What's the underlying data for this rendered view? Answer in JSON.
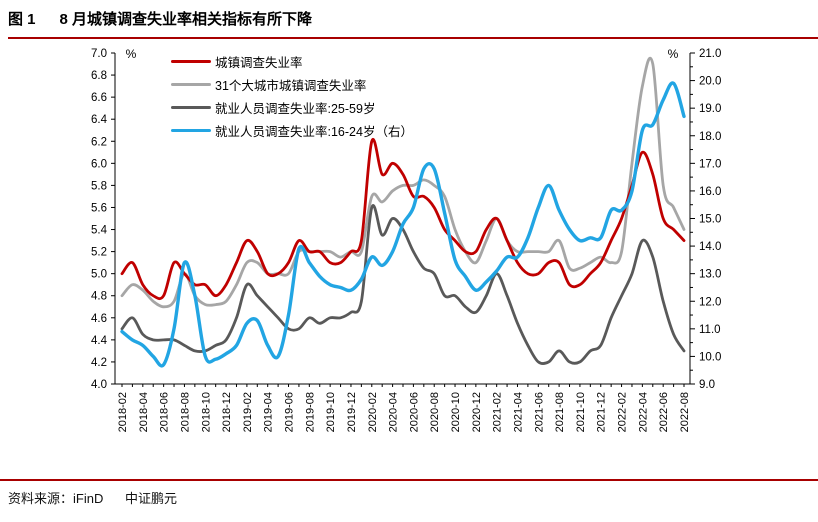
{
  "header": {
    "figure_label": "图 1",
    "title": "8 月城镇调查失业率相关指标有所下降"
  },
  "footer": {
    "source_label": "资料来源：",
    "source": "iFinD",
    "org": "中证鹏元"
  },
  "chart_data": {
    "type": "line",
    "title": "8 月城镇调查失业率相关指标有所下降",
    "grid": false,
    "legend_position": "top-left",
    "x_tick_label_every": 2,
    "x": [
      "2018-02",
      "2018-03",
      "2018-04",
      "2018-05",
      "2018-06",
      "2018-07",
      "2018-08",
      "2018-09",
      "2018-10",
      "2018-11",
      "2018-12",
      "2019-01",
      "2019-02",
      "2019-03",
      "2019-04",
      "2019-05",
      "2019-06",
      "2019-07",
      "2019-08",
      "2019-09",
      "2019-10",
      "2019-11",
      "2019-12",
      "2020-01",
      "2020-02",
      "2020-03",
      "2020-04",
      "2020-05",
      "2020-06",
      "2020-07",
      "2020-08",
      "2020-09",
      "2020-10",
      "2020-11",
      "2020-12",
      "2021-01",
      "2021-02",
      "2021-03",
      "2021-04",
      "2021-05",
      "2021-06",
      "2021-07",
      "2021-08",
      "2021-09",
      "2021-10",
      "2021-11",
      "2021-12",
      "2022-01",
      "2022-02",
      "2022-03",
      "2022-04",
      "2022-05",
      "2022-06",
      "2022-07",
      "2022-08"
    ],
    "left_axis": {
      "unit": "%",
      "min": 4.0,
      "max": 7.0,
      "step": 0.2,
      "ticks": [
        "7.0",
        "6.8",
        "6.6",
        "6.4",
        "6.2",
        "6.0",
        "5.8",
        "5.6",
        "5.4",
        "5.2",
        "5.0",
        "4.8",
        "4.6",
        "4.4",
        "4.2",
        "4.0"
      ]
    },
    "right_axis": {
      "unit": "%",
      "min": 9.0,
      "max": 21.0,
      "step": 1.0,
      "minor_step": 0.5,
      "ticks": [
        "21.0",
        "20.0",
        "19.0",
        "18.0",
        "17.0",
        "16.0",
        "15.0",
        "14.0",
        "13.0",
        "12.0",
        "11.0",
        "10.0",
        "9.0"
      ]
    },
    "series": [
      {
        "name": "城镇调查失业率",
        "color": "#c00000",
        "axis": "left",
        "values": [
          5.0,
          5.1,
          4.9,
          4.8,
          4.8,
          5.1,
          5.0,
          4.9,
          4.9,
          4.8,
          4.9,
          5.1,
          5.3,
          5.2,
          5.0,
          5.0,
          5.1,
          5.3,
          5.2,
          5.2,
          5.1,
          5.1,
          5.2,
          5.3,
          6.2,
          5.9,
          6.0,
          5.9,
          5.7,
          5.7,
          5.6,
          5.4,
          5.3,
          5.2,
          5.2,
          5.4,
          5.5,
          5.3,
          5.1,
          5.0,
          5.0,
          5.1,
          5.1,
          4.9,
          4.9,
          5.0,
          5.1,
          5.3,
          5.5,
          5.8,
          6.1,
          5.9,
          5.5,
          5.4,
          5.3
        ]
      },
      {
        "name": "31个大城市城镇调查失业率",
        "color": "#a6a6a6",
        "axis": "left",
        "values": [
          4.8,
          4.9,
          4.85,
          4.75,
          4.7,
          4.75,
          5.0,
          4.8,
          4.72,
          4.72,
          4.75,
          4.9,
          5.1,
          5.1,
          5.0,
          5.0,
          5.0,
          5.2,
          5.2,
          5.2,
          5.2,
          5.15,
          5.2,
          5.2,
          5.7,
          5.65,
          5.75,
          5.8,
          5.8,
          5.85,
          5.8,
          5.7,
          5.4,
          5.2,
          5.1,
          5.3,
          5.5,
          5.3,
          5.2,
          5.2,
          5.2,
          5.2,
          5.3,
          5.05,
          5.05,
          5.1,
          5.15,
          5.1,
          5.2,
          6.0,
          6.7,
          6.9,
          5.8,
          5.6,
          5.4
        ]
      },
      {
        "name": "就业人员调查失业率:25-59岁",
        "color": "#595959",
        "axis": "left",
        "values": [
          4.5,
          4.6,
          4.45,
          4.4,
          4.4,
          4.4,
          4.35,
          4.3,
          4.3,
          4.35,
          4.4,
          4.6,
          4.9,
          4.8,
          4.7,
          4.6,
          4.5,
          4.5,
          4.6,
          4.55,
          4.6,
          4.6,
          4.65,
          4.75,
          5.6,
          5.35,
          5.5,
          5.4,
          5.2,
          5.05,
          5.0,
          4.8,
          4.8,
          4.7,
          4.65,
          4.8,
          5.0,
          4.8,
          4.55,
          4.35,
          4.2,
          4.2,
          4.3,
          4.2,
          4.2,
          4.3,
          4.35,
          4.6,
          4.8,
          5.0,
          5.3,
          5.15,
          4.75,
          4.45,
          4.3
        ]
      },
      {
        "name": "就业人员调查失业率:16-24岁（右）",
        "color": "#22a5e3",
        "axis": "right",
        "values": [
          10.9,
          10.6,
          10.4,
          10.0,
          9.7,
          11.0,
          13.4,
          12.2,
          10.0,
          9.9,
          10.1,
          10.4,
          11.2,
          11.3,
          10.4,
          10.0,
          11.5,
          13.9,
          13.4,
          12.9,
          12.6,
          12.5,
          12.4,
          12.8,
          13.6,
          13.3,
          13.8,
          14.8,
          15.4,
          16.8,
          16.8,
          15.2,
          13.5,
          12.9,
          12.4,
          12.7,
          13.1,
          13.6,
          13.6,
          14.3,
          15.4,
          16.2,
          15.3,
          14.6,
          14.2,
          14.3,
          14.3,
          15.3,
          15.3,
          16.0,
          18.2,
          18.4,
          19.3,
          19.9,
          18.7
        ]
      }
    ]
  }
}
